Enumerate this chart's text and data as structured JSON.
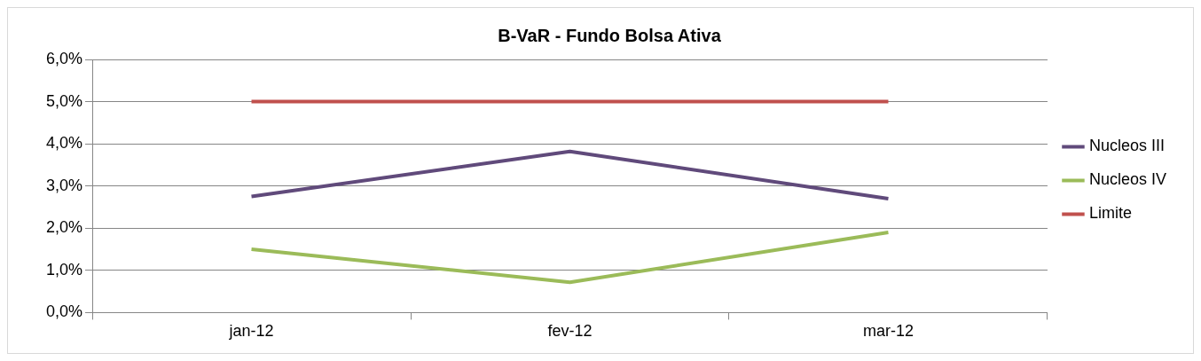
{
  "chart_data": {
    "type": "line",
    "title": "B-VaR - Fundo Bolsa Ativa",
    "categories": [
      "jan-12",
      "fev-12",
      "mar-12"
    ],
    "series": [
      {
        "name": "Nucleos III",
        "color": "#604a7b",
        "values": [
          2.75,
          3.82,
          2.7
        ]
      },
      {
        "name": "Nucleos IV",
        "color": "#9bbb59",
        "values": [
          1.5,
          0.72,
          1.9
        ]
      },
      {
        "name": "Limite",
        "color": "#c0504d",
        "values": [
          5,
          5,
          5
        ]
      }
    ],
    "ylim": [
      0,
      6
    ],
    "yticks": [
      {
        "value": 0,
        "label": "0,0%"
      },
      {
        "value": 1,
        "label": "1,0%"
      },
      {
        "value": 2,
        "label": "2,0%"
      },
      {
        "value": 3,
        "label": "3,0%"
      },
      {
        "value": 4,
        "label": "4,0%"
      },
      {
        "value": 5,
        "label": "5,0%"
      },
      {
        "value": 6,
        "label": "6,0%"
      }
    ],
    "grid": "y",
    "legend": "right",
    "marker": "none",
    "line_style": "solid"
  }
}
